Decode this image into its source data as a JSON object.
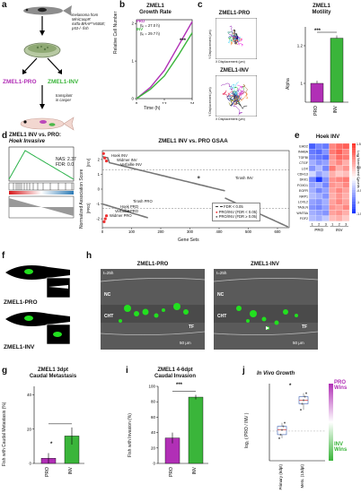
{
  "panels": {
    "a": {
      "letter": "a",
      "fish_caption_lines": [
        "melanoma from",
        "MiniCoopR",
        "mitfa-BRAF^V600E;",
        "p53-/- fish"
      ],
      "pro_label": "ZMEL1-PRO",
      "inv_label": "ZMEL1-INV",
      "transplant_lines": [
        "transplant",
        "in casper"
      ]
    },
    "b": {
      "letter": "b",
      "title_lines": [
        "ZMEL1",
        "Growth Rate"
      ],
      "ylabel": "Relative Cell Number",
      "xlabel": "Time (h)",
      "legend": [
        {
          "name": "PRO",
          "sub": "(tₑ = 27.0 h)",
          "color": "#b12fb6"
        },
        {
          "name": "INV",
          "sub": "(tₑ = 29.7 h)",
          "color": "#3ab53a"
        }
      ],
      "sig": "***",
      "chart_data": {
        "type": "line",
        "x": [
          0,
          6,
          12,
          18,
          24
        ],
        "series": [
          {
            "name": "PRO",
            "values": [
              0.0,
              0.3,
              0.75,
              1.4,
              2.05
            ]
          },
          {
            "name": "INV",
            "values": [
              0.0,
              0.25,
              0.6,
              1.15,
              1.75
            ]
          }
        ],
        "xticks": [
          "0",
          "12",
          "24"
        ],
        "yticks": [
          "0",
          "1",
          "2"
        ],
        "xlim": [
          0,
          24
        ],
        "ylim": [
          0,
          2.1
        ]
      }
    },
    "c": {
      "letter": "c",
      "pro_title": "ZMEL1-PRO",
      "inv_title": "ZMEL1-INV",
      "xdisp": "X Displacement (μm)",
      "ydisp": "Y Displacement (μm)",
      "motility_title_lines": [
        "ZMEL1",
        "Motility"
      ],
      "ylabel": "Alpha",
      "sig": "***",
      "chart_data": {
        "type": "bar",
        "categories": [
          "PRO",
          "INV"
        ],
        "values": [
          1.0,
          1.24
        ],
        "yticks": [
          "1",
          "1.2"
        ],
        "ylim": [
          0.9,
          1.3
        ]
      }
    },
    "d": {
      "letter": "d",
      "gsea_title_lines": [
        "ZMEL1 INV vs. PRO:",
        "Hoek Invasive"
      ],
      "nas": "NAS: 2.37",
      "fdr": "FDR: 0.0",
      "gsaa_title": "ZMEL1 INV vs. PRO GSAA",
      "ylabel": "Normalized Association Score",
      "yl_inv": "[INV]",
      "yl_pro": "[PRO]",
      "xlabel": "Gene Sets",
      "top_labels": [
        "Hoek INV",
        "Widmer INV",
        "Verfaillie INV"
      ],
      "tirosh_inv": "Tirosh INV",
      "tirosh_pro": "Tirosh PRO",
      "bottom_labels": [
        "Hoek PRO",
        "Verfaillie PRO",
        "Widmer PRO"
      ],
      "legend": [
        "FDR < 0.05",
        "PRO/INV (FDR < 0.05)",
        "PRO/INV (FDR ≥ 0.05)"
      ],
      "chart_data": {
        "type": "scatter",
        "xticks": [
          "0",
          "100",
          "200",
          "300",
          "400",
          "500",
          "600"
        ],
        "yticks": [
          "-2",
          "-1",
          "0",
          "1",
          "2"
        ],
        "xlim": [
          0,
          640
        ],
        "ylim": [
          -2.6,
          2.6
        ]
      }
    },
    "e": {
      "letter": "e",
      "title": "Hoek INV",
      "scale_label": "Log Normalized Counts",
      "scale_ticks": [
        "1.5",
        "1",
        "0.5",
        "0",
        "-0.5",
        "-1",
        "-1.5"
      ],
      "col_groups": [
        "PRO",
        "INV"
      ],
      "col_numbers": [
        "1",
        "2",
        "3",
        "1",
        "2",
        "3"
      ],
      "chart_data": {
        "type": "heatmap",
        "rows": [
          "EHD2",
          "INHBA",
          "TGFBI",
          "CTGF",
          "LOX",
          "CDH13",
          "DKK1",
          "FOXD1",
          "EGFR",
          "NRP1",
          "LOXL2",
          "TAGLN",
          "WNT5A",
          "FGF2"
        ],
        "values": [
          [
            -1.2,
            -0.9,
            -1.0,
            0.9,
            1.1,
            1.2
          ],
          [
            -1.0,
            -1.1,
            -0.8,
            1.0,
            1.2,
            0.9
          ],
          [
            -0.9,
            -1.0,
            -1.1,
            0.8,
            1.1,
            1.0
          ],
          [
            -0.6,
            -0.8,
            -0.7,
            0.7,
            0.9,
            0.6
          ],
          [
            -0.8,
            -0.5,
            -0.9,
            1.0,
            0.6,
            0.8
          ],
          [
            -0.3,
            -0.7,
            -0.5,
            0.6,
            0.4,
            0.5
          ],
          [
            -0.9,
            -1.5,
            -0.8,
            0.8,
            0.9,
            1.0
          ],
          [
            -0.7,
            -0.6,
            -0.9,
            0.8,
            0.7,
            0.9
          ],
          [
            -0.6,
            -0.9,
            -0.7,
            0.7,
            0.9,
            0.7
          ],
          [
            -0.5,
            -0.6,
            -0.8,
            0.6,
            0.8,
            0.6
          ],
          [
            -0.7,
            -0.8,
            -0.6,
            0.7,
            0.9,
            0.7
          ],
          [
            -0.8,
            -0.9,
            -0.7,
            0.8,
            0.7,
            0.9
          ],
          [
            -0.6,
            -0.7,
            -0.8,
            0.7,
            0.8,
            0.6
          ],
          [
            -0.5,
            -0.6,
            -0.4,
            0.5,
            0.6,
            0.4
          ]
        ],
        "vmin": -1.5,
        "vmax": 1.5
      }
    },
    "f": {
      "letter": "f",
      "pro_label": "ZMEL1-PRO",
      "inv_label": "ZMEL1-INV"
    },
    "h": {
      "letter": "h",
      "pro_title": "ZMEL1-PRO",
      "inv_title": "ZMEL1-INV",
      "time": "t=25h",
      "nc": "NC",
      "cht": "CHT",
      "tf": "TF",
      "scale": "50 μm"
    },
    "g": {
      "letter": "g",
      "title_lines": [
        "ZMEL1 3dpt",
        "Caudal Metastasis"
      ],
      "ylabel": "Fish with Caudal Metastasis (%)",
      "sig": "*",
      "chart_data": {
        "type": "bar",
        "categories": [
          "PRO",
          "INV"
        ],
        "values": [
          3,
          16
        ],
        "errors": [
          3,
          5
        ],
        "yticks": [
          "0",
          "20",
          "40"
        ],
        "ylim": [
          0,
          45
        ]
      }
    },
    "i": {
      "letter": "i",
      "title_lines": [
        "ZMEL1 4-6dpt",
        "Caudal Invasion"
      ],
      "ylabel": "Fish with Invasion (%)",
      "sig": "***",
      "chart_data": {
        "type": "bar",
        "categories": [
          "PRO",
          "INV"
        ],
        "values": [
          33,
          86
        ],
        "errors": [
          7,
          3
        ],
        "yticks": [
          "0",
          "20",
          "40",
          "60",
          "80",
          "100"
        ],
        "ylim": [
          0,
          100
        ]
      }
    },
    "j": {
      "letter": "j",
      "title": "In Vivo Growth",
      "ylabel": "log₂ ( PRO / INV )",
      "pro_wins": [
        "PRO",
        "Wins"
      ],
      "inv_wins": [
        "INV",
        "Wins"
      ],
      "sig": "*",
      "chart_data": {
        "type": "scatter",
        "categories": [
          "Primary (6dpt)",
          "Mets. (13dpt)"
        ],
        "values": [
          [
            -0.6,
            -0.3,
            0.1,
            0.4,
            0.7
          ],
          [
            1.8,
            2.3,
            2.6,
            2.9,
            3.2
          ]
        ],
        "ylim": [
          -2.5,
          4
        ]
      }
    }
  },
  "colors": {
    "pro": "#b12fb6",
    "inv": "#3ab53a",
    "fish": "#9b9b9b",
    "gfp": "#22e01f"
  }
}
